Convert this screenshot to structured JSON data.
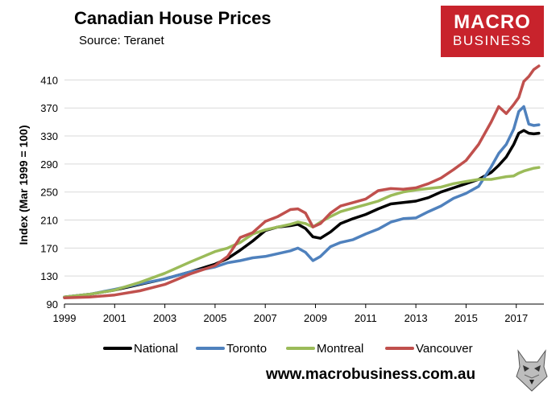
{
  "header": {
    "title": "Canadian House Prices",
    "source": "Source: Teranet"
  },
  "logo": {
    "line1": "MACRO",
    "line2": "BUSINESS"
  },
  "footer": {
    "website": "www.macrobusiness.com.au"
  },
  "colors": {
    "national": "#000000",
    "toronto": "#4f81bd",
    "montreal": "#9bbb59",
    "vancouver": "#c0504d",
    "brand": "#c8232c",
    "grid": "#d9d9d9"
  },
  "chart_data": {
    "type": "line",
    "title": "Canadian House Prices",
    "subtitle": "Source: Teranet",
    "xlabel": "",
    "ylabel": "Index (Mar 1999 = 100)",
    "xlim": [
      1999,
      2018.1
    ],
    "ylim": [
      90,
      430
    ],
    "yticks": [
      90,
      130,
      170,
      210,
      250,
      290,
      330,
      370,
      410
    ],
    "xticks": [
      1999,
      2001,
      2003,
      2005,
      2007,
      2009,
      2011,
      2013,
      2015,
      2017
    ],
    "grid": "horizontal",
    "legend": "bottom",
    "series": [
      {
        "name": "National",
        "color": "#000000",
        "x": [
          1999,
          2000,
          2001,
          2002,
          2003,
          2004,
          2005,
          2005.5,
          2006,
          2006.5,
          2007,
          2007.5,
          2008,
          2008.3,
          2008.6,
          2008.9,
          2009.2,
          2009.6,
          2010,
          2010.5,
          2011,
          2011.5,
          2012,
          2012.5,
          2013,
          2013.5,
          2014,
          2014.5,
          2015,
          2015.5,
          2016,
          2016.3,
          2016.6,
          2016.9,
          2017.1,
          2017.3,
          2017.5,
          2017.7,
          2017.9
        ],
        "values": [
          100,
          104,
          110,
          118,
          126,
          136,
          147,
          155,
          167,
          180,
          195,
          200,
          202,
          204,
          198,
          186,
          184,
          193,
          205,
          212,
          218,
          226,
          233,
          235,
          237,
          242,
          250,
          256,
          262,
          268,
          278,
          288,
          300,
          318,
          334,
          338,
          334,
          333,
          334
        ]
      },
      {
        "name": "Toronto",
        "color": "#4f81bd",
        "x": [
          1999,
          2000,
          2001,
          2002,
          2003,
          2004,
          2005,
          2005.5,
          2006,
          2006.5,
          2007,
          2007.5,
          2008,
          2008.3,
          2008.6,
          2008.9,
          2009.2,
          2009.6,
          2010,
          2010.5,
          2011,
          2011.5,
          2012,
          2012.5,
          2013,
          2013.5,
          2014,
          2014.5,
          2015,
          2015.5,
          2016,
          2016.3,
          2016.6,
          2016.9,
          2017.1,
          2017.3,
          2017.5,
          2017.7,
          2017.9
        ],
        "values": [
          100,
          104,
          111,
          119,
          126,
          136,
          143,
          149,
          152,
          156,
          158,
          162,
          166,
          170,
          164,
          152,
          158,
          172,
          178,
          182,
          190,
          197,
          207,
          212,
          213,
          222,
          230,
          241,
          248,
          258,
          286,
          305,
          318,
          340,
          365,
          372,
          347,
          345,
          346
        ]
      },
      {
        "name": "Montreal",
        "color": "#9bbb59",
        "x": [
          1999,
          2000,
          2001,
          2002,
          2003,
          2004,
          2005,
          2005.5,
          2006,
          2006.5,
          2007,
          2007.5,
          2008,
          2008.3,
          2008.6,
          2008.9,
          2009.2,
          2009.6,
          2010,
          2010.5,
          2011,
          2011.5,
          2012,
          2012.5,
          2013,
          2013.5,
          2014,
          2014.5,
          2015,
          2015.5,
          2016,
          2016.3,
          2016.6,
          2016.9,
          2017.1,
          2017.3,
          2017.5,
          2017.7,
          2017.9
        ],
        "values": [
          100,
          104,
          110,
          121,
          134,
          150,
          165,
          170,
          178,
          190,
          196,
          200,
          204,
          207,
          205,
          200,
          207,
          215,
          222,
          227,
          232,
          237,
          245,
          250,
          253,
          255,
          257,
          262,
          265,
          268,
          268,
          270,
          272,
          273,
          277,
          280,
          282,
          284,
          285
        ]
      },
      {
        "name": "Vancouver",
        "color": "#c0504d",
        "x": [
          1999,
          2000,
          2001,
          2002,
          2003,
          2004,
          2005,
          2005.5,
          2006,
          2006.5,
          2007,
          2007.5,
          2008,
          2008.3,
          2008.6,
          2008.9,
          2009.2,
          2009.6,
          2010,
          2010.5,
          2011,
          2011.5,
          2012,
          2012.5,
          2013,
          2013.5,
          2014,
          2014.5,
          2015,
          2015.5,
          2016,
          2016.3,
          2016.6,
          2016.9,
          2017.1,
          2017.3,
          2017.5,
          2017.7,
          2017.9
        ],
        "values": [
          99,
          100,
          103,
          109,
          118,
          133,
          145,
          158,
          185,
          192,
          208,
          215,
          225,
          226,
          220,
          200,
          205,
          220,
          230,
          235,
          240,
          252,
          255,
          254,
          256,
          262,
          270,
          282,
          295,
          318,
          350,
          372,
          362,
          375,
          385,
          408,
          415,
          425,
          430
        ]
      }
    ]
  }
}
